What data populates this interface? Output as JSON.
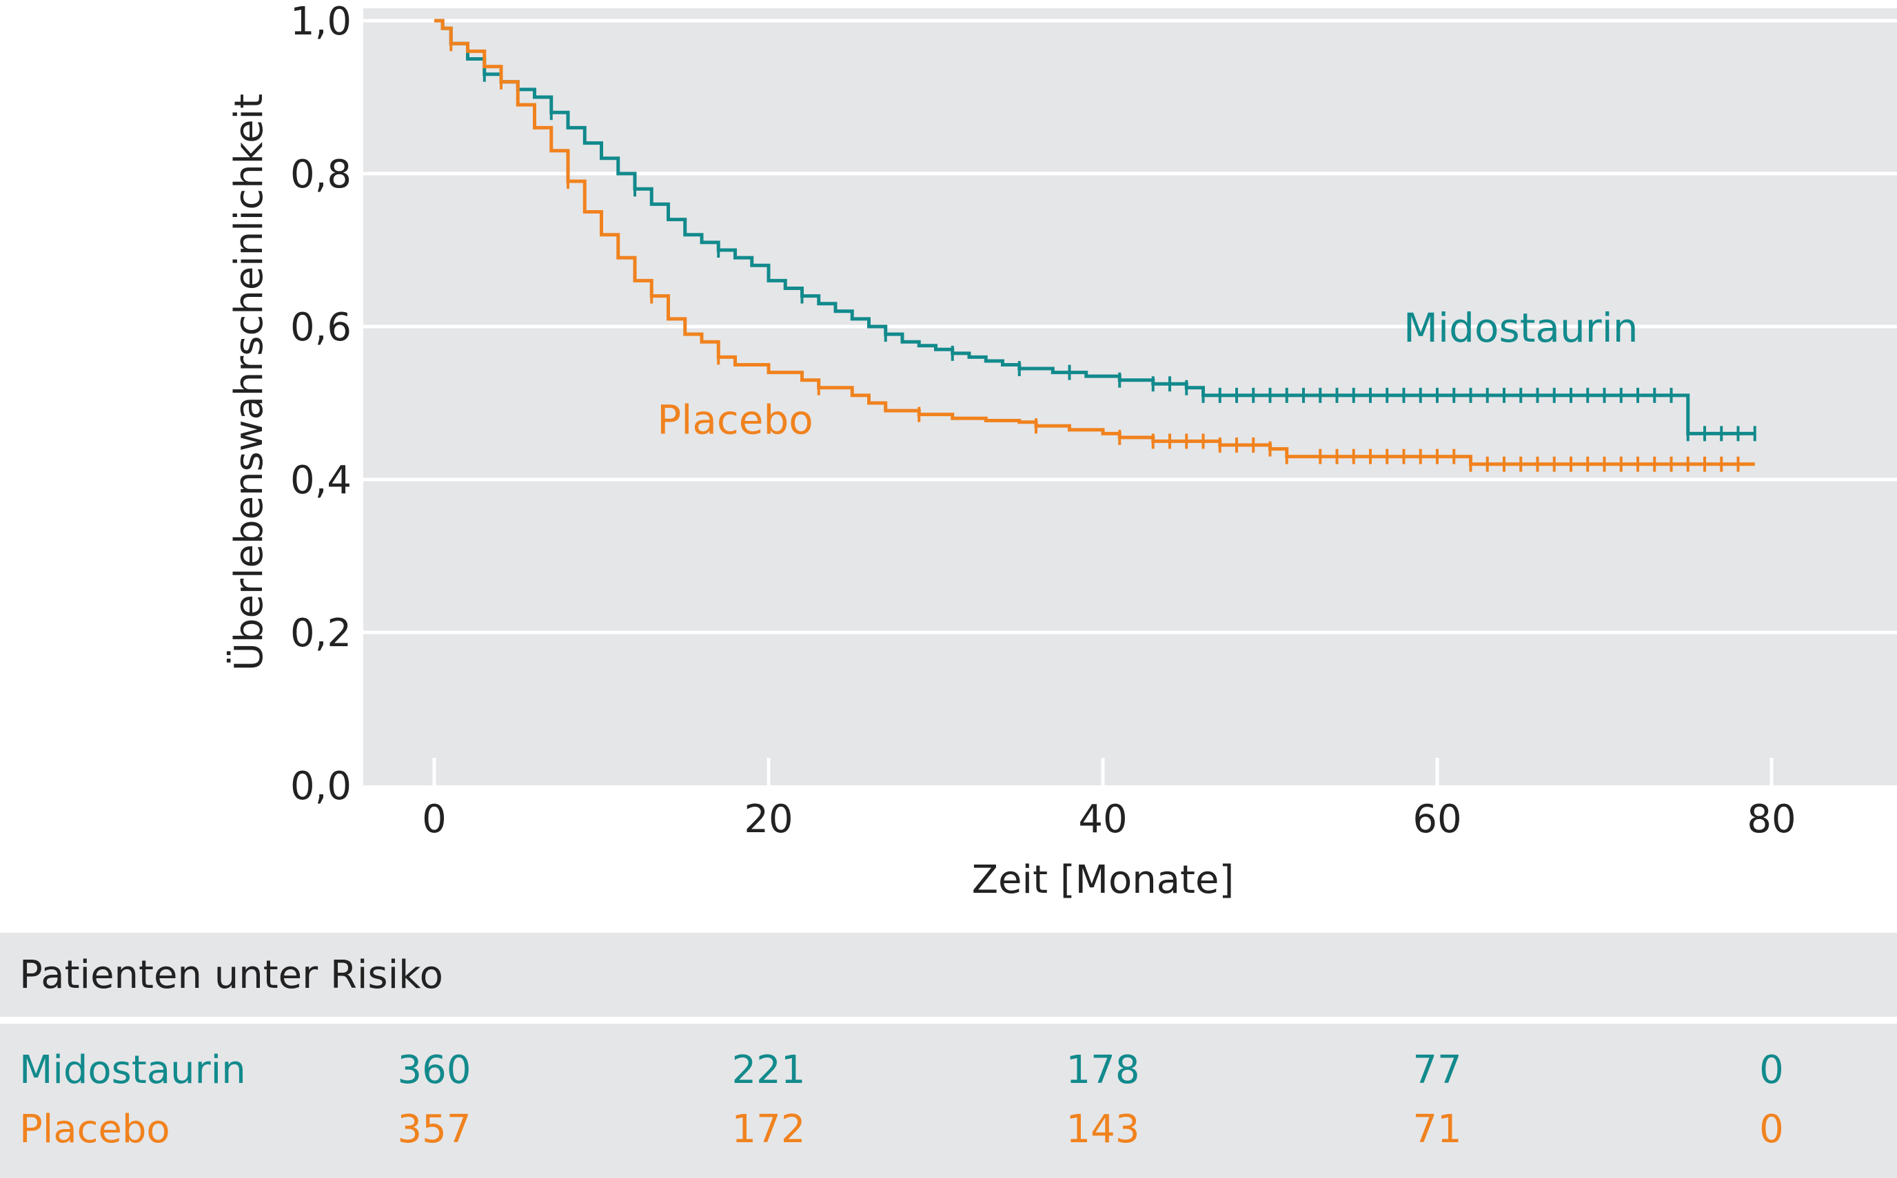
{
  "chart_data": {
    "type": "line",
    "xlabel": "Zeit [Monate]",
    "ylabel": "Überlebenswahrscheinlichkeit",
    "xlim": [
      -4,
      87
    ],
    "ylim": [
      0,
      1.0
    ],
    "xticks": [
      "0",
      "20",
      "40",
      "60",
      "80"
    ],
    "xtick_values": [
      0,
      20,
      40,
      60,
      80
    ],
    "yticks": [
      "0,0",
      "0,2",
      "0,4",
      "0,6",
      "0,8",
      "1,0"
    ],
    "ytick_values": [
      0,
      0.2,
      0.4,
      0.6,
      0.8,
      1.0
    ],
    "grid": "horizontal",
    "background": "#e5e6e8",
    "series": [
      {
        "name": "Midostaurin",
        "color": "#128a8c",
        "points": [
          [
            0,
            1.0
          ],
          [
            0.5,
            0.99
          ],
          [
            1,
            0.97
          ],
          [
            2,
            0.95
          ],
          [
            3,
            0.93
          ],
          [
            4,
            0.92
          ],
          [
            5,
            0.91
          ],
          [
            6,
            0.9
          ],
          [
            7,
            0.88
          ],
          [
            8,
            0.86
          ],
          [
            9,
            0.84
          ],
          [
            10,
            0.82
          ],
          [
            11,
            0.8
          ],
          [
            12,
            0.78
          ],
          [
            13,
            0.76
          ],
          [
            14,
            0.74
          ],
          [
            15,
            0.72
          ],
          [
            16,
            0.71
          ],
          [
            17,
            0.7
          ],
          [
            18,
            0.69
          ],
          [
            19,
            0.68
          ],
          [
            20,
            0.66
          ],
          [
            21,
            0.65
          ],
          [
            22,
            0.64
          ],
          [
            23,
            0.63
          ],
          [
            24,
            0.62
          ],
          [
            25,
            0.61
          ],
          [
            26,
            0.6
          ],
          [
            27,
            0.59
          ],
          [
            28,
            0.58
          ],
          [
            29,
            0.575
          ],
          [
            30,
            0.57
          ],
          [
            31,
            0.565
          ],
          [
            32,
            0.56
          ],
          [
            33,
            0.555
          ],
          [
            34,
            0.55
          ],
          [
            35,
            0.545
          ],
          [
            37,
            0.54
          ],
          [
            39,
            0.535
          ],
          [
            41,
            0.53
          ],
          [
            43,
            0.525
          ],
          [
            45,
            0.52
          ],
          [
            46,
            0.51
          ],
          [
            55,
            0.51
          ],
          [
            65,
            0.51
          ],
          [
            75,
            0.51
          ],
          [
            75,
            0.46
          ],
          [
            79,
            0.46
          ]
        ],
        "censor_x": [
          3,
          7,
          12,
          17,
          22,
          27,
          31,
          35,
          38,
          41,
          43,
          44,
          45,
          46,
          47,
          48,
          49,
          50,
          51,
          52,
          53,
          54,
          55,
          56,
          57,
          58,
          59,
          60,
          61,
          62,
          63,
          64,
          65,
          66,
          67,
          68,
          69,
          70,
          71,
          72,
          73,
          74,
          75,
          76,
          77,
          78,
          79
        ]
      },
      {
        "name": "Placebo",
        "color": "#f0821e",
        "points": [
          [
            0,
            1.0
          ],
          [
            0.5,
            0.99
          ],
          [
            1,
            0.97
          ],
          [
            2,
            0.96
          ],
          [
            3,
            0.94
          ],
          [
            4,
            0.92
          ],
          [
            5,
            0.89
          ],
          [
            6,
            0.86
          ],
          [
            7,
            0.83
          ],
          [
            8,
            0.79
          ],
          [
            9,
            0.75
          ],
          [
            10,
            0.72
          ],
          [
            11,
            0.69
          ],
          [
            12,
            0.66
          ],
          [
            13,
            0.64
          ],
          [
            14,
            0.61
          ],
          [
            15,
            0.59
          ],
          [
            16,
            0.58
          ],
          [
            17,
            0.56
          ],
          [
            18,
            0.55
          ],
          [
            20,
            0.54
          ],
          [
            22,
            0.53
          ],
          [
            23,
            0.52
          ],
          [
            25,
            0.51
          ],
          [
            26,
            0.5
          ],
          [
            27,
            0.49
          ],
          [
            29,
            0.485
          ],
          [
            31,
            0.48
          ],
          [
            33,
            0.477
          ],
          [
            35,
            0.475
          ],
          [
            36,
            0.47
          ],
          [
            38,
            0.465
          ],
          [
            40,
            0.46
          ],
          [
            41,
            0.455
          ],
          [
            43,
            0.45
          ],
          [
            47,
            0.445
          ],
          [
            50,
            0.44
          ],
          [
            51,
            0.43
          ],
          [
            60,
            0.43
          ],
          [
            62,
            0.42
          ],
          [
            70,
            0.42
          ],
          [
            79,
            0.42
          ]
        ],
        "censor_x": [
          1,
          4,
          8,
          13,
          17,
          23,
          29,
          36,
          41,
          43,
          44,
          45,
          46,
          47,
          48,
          49,
          50,
          51,
          53,
          54,
          55,
          56,
          57,
          58,
          59,
          60,
          61,
          62,
          63,
          64,
          65,
          66,
          67,
          68,
          69,
          70,
          71,
          72,
          73,
          74,
          75,
          76,
          77,
          78
        ]
      }
    ],
    "annotations": [
      {
        "text": "Midostaurin",
        "x": 65,
        "y": 0.58,
        "color": "#128a8c"
      },
      {
        "text": "Placebo",
        "x": 18,
        "y": 0.46,
        "color": "#f0821e"
      }
    ]
  },
  "risk_table": {
    "header": "Patienten unter Risiko",
    "rows": [
      {
        "name": "Midostaurin",
        "color": "#128a8c",
        "values": [
          "360",
          "221",
          "178",
          "77",
          "0"
        ]
      },
      {
        "name": "Placebo",
        "color": "#f0821e",
        "values": [
          "357",
          "172",
          "143",
          "71",
          "0"
        ]
      }
    ]
  }
}
